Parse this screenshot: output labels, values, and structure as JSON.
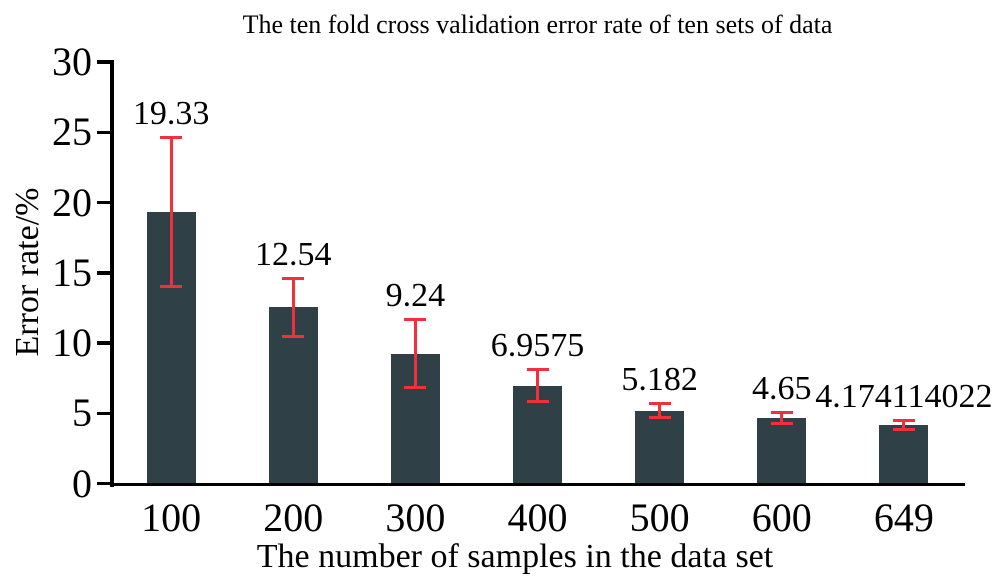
{
  "chart_data": {
    "type": "bar",
    "title": "The ten fold cross validation error rate of ten sets of data",
    "xlabel": "The number of samples in the data set",
    "ylabel": "Error rate/%",
    "categories": [
      "100",
      "200",
      "300",
      "400",
      "500",
      "600",
      "649"
    ],
    "values": [
      19.33,
      12.54,
      9.24,
      6.9575,
      5.182,
      4.65,
      4.174114022
    ],
    "value_labels": [
      "19.33",
      "12.54",
      "9.24",
      "6.9575",
      "5.182",
      "4.65",
      "4.174114022"
    ],
    "error_bars": [
      5.25,
      2.05,
      2.4,
      1.1,
      0.45,
      0.35,
      0.3
    ],
    "ylim": [
      0,
      30
    ],
    "yticks": [
      0,
      5,
      10,
      15,
      20,
      25,
      30
    ],
    "grid": false,
    "legend": null,
    "bar_color": "#2f4146",
    "error_bar_color": "#f2303c",
    "axis_color": "#000000",
    "text_color": "#000000"
  }
}
